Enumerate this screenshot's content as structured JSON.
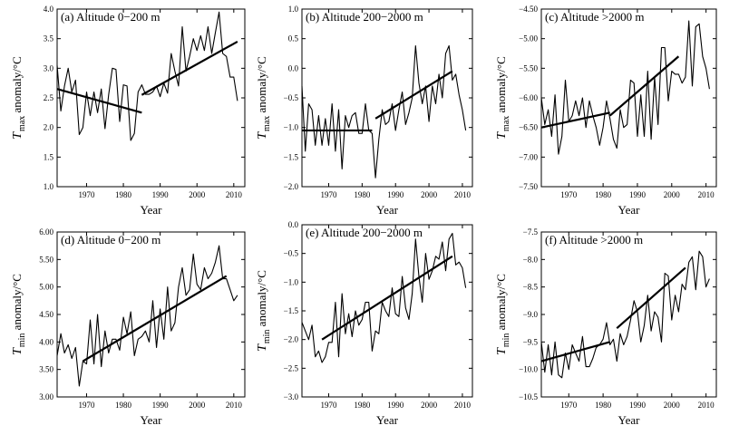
{
  "figure": {
    "xlabel": "Year",
    "ylabel_var_max": "T",
    "ylabel_sub_max": "max",
    "ylabel_var_min": "T",
    "ylabel_sub_min": "min",
    "ylabel_rest": " anomaly/°C"
  },
  "chart_data": [
    {
      "type": "line",
      "panel": "(a)",
      "title": "Altitude 0−200 m",
      "xlabel": "Year",
      "ylabel": "T max anomaly/°C",
      "variable": "max",
      "xlim": [
        1962,
        2013
      ],
      "ylim": [
        1.0,
        4.0
      ],
      "xticks": [
        1970,
        1980,
        1990,
        2000,
        2010
      ],
      "yticks": [
        1.0,
        1.5,
        2.0,
        2.5,
        3.0,
        3.5,
        4.0
      ],
      "ytick_labels": [
        "1.0",
        "1.5",
        "2.0",
        "2.5",
        "3.0",
        "3.5",
        "4.0"
      ],
      "years_start": 1962,
      "values": [
        3.05,
        2.28,
        2.7,
        3.0,
        2.6,
        2.8,
        1.88,
        2.0,
        2.6,
        2.2,
        2.6,
        2.25,
        2.65,
        1.98,
        2.55,
        3.0,
        2.98,
        2.1,
        2.72,
        2.7,
        1.78,
        1.9,
        2.6,
        2.72,
        2.56,
        2.56,
        2.6,
        2.7,
        2.52,
        2.75,
        2.58,
        3.25,
        2.95,
        2.7,
        3.7,
        2.95,
        3.2,
        3.5,
        3.3,
        3.55,
        3.3,
        3.7,
        3.25,
        3.6,
        3.95,
        3.25,
        3.2,
        2.85,
        2.85,
        2.45
      ],
      "trend_lines": [
        {
          "x": [
            1962,
            1985
          ],
          "y": [
            2.65,
            2.25
          ]
        },
        {
          "x": [
            1985,
            2011
          ],
          "y": [
            2.55,
            3.45
          ]
        }
      ]
    },
    {
      "type": "line",
      "panel": "(b)",
      "title": "Altitude 200−2000 m",
      "xlabel": "Year",
      "ylabel": "T max anomaly/°C",
      "variable": "max",
      "xlim": [
        1962,
        2013
      ],
      "ylim": [
        -2.0,
        1.0
      ],
      "xticks": [
        1970,
        1980,
        1990,
        2000,
        2010
      ],
      "yticks": [
        -2.0,
        -1.5,
        -1.0,
        -0.5,
        0.0,
        0.5,
        1.0
      ],
      "ytick_labels": [
        "−2.0",
        "−1.5",
        "−1.0",
        "−0.5",
        "0.0",
        "0.5",
        "1.0"
      ],
      "years_start": 1962,
      "values": [
        -0.3,
        -1.4,
        -0.6,
        -0.7,
        -1.3,
        -0.8,
        -1.3,
        -0.85,
        -1.3,
        -0.6,
        -1.4,
        -0.7,
        -1.7,
        -0.8,
        -1.0,
        -0.8,
        -0.75,
        -1.1,
        -1.1,
        -0.6,
        -1.05,
        -1.1,
        -1.85,
        -1.2,
        -0.7,
        -0.95,
        -0.9,
        -0.6,
        -1.05,
        -0.7,
        -0.4,
        -0.95,
        -0.75,
        -0.5,
        0.38,
        -0.25,
        -0.6,
        -0.3,
        -0.9,
        -0.3,
        -0.6,
        -0.1,
        -0.5,
        0.25,
        0.38,
        -0.2,
        -0.1,
        -0.45,
        -0.7,
        -1.05
      ],
      "trend_lines": [
        {
          "x": [
            1962,
            1983
          ],
          "y": [
            -1.05,
            -1.05
          ]
        },
        {
          "x": [
            1984,
            2007
          ],
          "y": [
            -0.85,
            -0.05
          ]
        }
      ]
    },
    {
      "type": "line",
      "panel": "(c)",
      "title": "Altitude >2000 m",
      "xlabel": "Year",
      "ylabel": "T max anomaly/°C",
      "variable": "max",
      "xlim": [
        1962,
        2013
      ],
      "ylim": [
        -7.5,
        -4.5
      ],
      "xticks": [
        1970,
        1980,
        1990,
        2000,
        2010
      ],
      "yticks": [
        -7.5,
        -7.0,
        -6.5,
        -6.0,
        -5.5,
        -5.0,
        -4.5
      ],
      "ytick_labels": [
        "−7.50",
        "−7.00",
        "−6.50",
        "−6.00",
        "−5.50",
        "−5.00",
        "−4.50"
      ],
      "years_start": 1962,
      "values": [
        -6.0,
        -6.45,
        -6.2,
        -6.65,
        -5.95,
        -6.95,
        -6.65,
        -5.7,
        -6.4,
        -6.3,
        -6.05,
        -6.3,
        -6.0,
        -6.5,
        -6.05,
        -6.3,
        -6.5,
        -6.8,
        -6.5,
        -6.05,
        -6.35,
        -6.7,
        -6.85,
        -6.2,
        -6.5,
        -6.45,
        -5.7,
        -5.75,
        -6.65,
        -5.95,
        -6.65,
        -5.55,
        -6.7,
        -5.65,
        -6.45,
        -5.15,
        -5.15,
        -6.05,
        -5.55,
        -5.6,
        -5.6,
        -5.75,
        -5.65,
        -4.7,
        -5.8,
        -4.8,
        -4.75,
        -5.3,
        -5.5,
        -5.85
      ],
      "trend_lines": [
        {
          "x": [
            1962,
            1982
          ],
          "y": [
            -6.5,
            -6.25
          ]
        },
        {
          "x": [
            1982,
            2002
          ],
          "y": [
            -6.3,
            -5.3
          ]
        }
      ]
    },
    {
      "type": "line",
      "panel": "(d)",
      "title": "Altitude 0−200 m",
      "xlabel": "Year",
      "ylabel": "T min anomaly/°C",
      "variable": "min",
      "xlim": [
        1962,
        2013
      ],
      "ylim": [
        3.0,
        6.0
      ],
      "xticks": [
        1970,
        1980,
        1990,
        2000,
        2010
      ],
      "yticks": [
        3.0,
        3.5,
        4.0,
        4.5,
        5.0,
        5.5,
        6.0
      ],
      "ytick_labels": [
        "3.00",
        "3.50",
        "4.00",
        "4.50",
        "5.00",
        "5.50",
        "6.00"
      ],
      "years_start": 1962,
      "values": [
        3.75,
        4.15,
        3.8,
        3.95,
        3.7,
        3.9,
        3.2,
        3.65,
        3.6,
        4.4,
        3.6,
        4.5,
        3.55,
        4.2,
        3.8,
        4.05,
        4.05,
        3.85,
        4.45,
        4.15,
        4.55,
        3.75,
        4.05,
        4.1,
        4.2,
        4.0,
        4.75,
        3.9,
        4.6,
        4.05,
        5.0,
        4.2,
        4.35,
        5.0,
        5.35,
        4.85,
        4.95,
        5.6,
        5.05,
        4.95,
        5.35,
        5.15,
        5.25,
        5.45,
        5.75,
        5.15,
        5.15,
        4.95,
        4.75,
        4.85
      ],
      "trend_lines": [
        {
          "x": [
            1969,
            2008
          ],
          "y": [
            3.65,
            5.2
          ]
        }
      ]
    },
    {
      "type": "line",
      "panel": "(e)",
      "title": "Altitude 200−2000 m",
      "xlabel": "Year",
      "ylabel": "T min anomaly/°C",
      "variable": "min",
      "xlim": [
        1962,
        2013
      ],
      "ylim": [
        -3.0,
        0.0
      ],
      "xticks": [
        1970,
        1980,
        1990,
        2000,
        2010
      ],
      "yticks": [
        -3.0,
        -2.5,
        -2.0,
        -1.5,
        -1.0,
        -0.5,
        0.0
      ],
      "ytick_labels": [
        "−3.0",
        "−2.5",
        "−2.0",
        "−1.5",
        "−1.0",
        "−0.5",
        "0.0"
      ],
      "years_start": 1962,
      "values": [
        -1.7,
        -1.85,
        -2.0,
        -1.75,
        -2.3,
        -2.2,
        -2.4,
        -2.3,
        -2.05,
        -2.05,
        -1.35,
        -2.3,
        -1.2,
        -1.9,
        -1.55,
        -1.95,
        -1.5,
        -1.75,
        -1.65,
        -1.35,
        -1.35,
        -2.2,
        -1.85,
        -1.9,
        -1.35,
        -1.5,
        -1.6,
        -1.1,
        -1.55,
        -1.6,
        -0.9,
        -1.45,
        -1.65,
        -1.2,
        -0.25,
        -0.9,
        -1.35,
        -0.5,
        -0.95,
        -0.8,
        -0.55,
        -0.6,
        -0.3,
        -0.8,
        -0.25,
        -0.15,
        -0.7,
        -0.65,
        -0.75,
        -1.1
      ],
      "trend_lines": [
        {
          "x": [
            1968,
            2007
          ],
          "y": [
            -2.0,
            -0.55
          ]
        }
      ]
    },
    {
      "type": "line",
      "panel": "(f)",
      "title": "Altitude >2000 m",
      "xlabel": "Year",
      "ylabel": "T min anomaly/°C",
      "variable": "min",
      "xlim": [
        1962,
        2013
      ],
      "ylim": [
        -10.5,
        -7.5
      ],
      "xticks": [
        1970,
        1980,
        1990,
        2000,
        2010
      ],
      "yticks": [
        -10.5,
        -10.0,
        -9.5,
        -9.0,
        -8.5,
        -8.0,
        -7.5
      ],
      "ytick_labels": [
        "−10.5",
        "−10.0",
        "−9.5",
        "−9.0",
        "−8.5",
        "−8.0",
        "−7.5"
      ],
      "years_start": 1962,
      "values": [
        -9.5,
        -10.05,
        -9.55,
        -10.1,
        -9.5,
        -10.1,
        -10.15,
        -9.7,
        -10.0,
        -9.55,
        -9.7,
        -9.85,
        -9.4,
        -9.95,
        -9.95,
        -9.8,
        -9.6,
        -9.55,
        -9.45,
        -9.15,
        -9.55,
        -9.45,
        -9.85,
        -9.35,
        -9.55,
        -9.4,
        -9.1,
        -8.75,
        -8.95,
        -9.5,
        -9.2,
        -8.65,
        -9.3,
        -8.95,
        -9.05,
        -9.5,
        -8.25,
        -8.3,
        -9.1,
        -8.65,
        -8.95,
        -8.45,
        -8.55,
        -8.05,
        -7.95,
        -8.55,
        -7.85,
        -7.95,
        -8.5,
        -8.35
      ],
      "trend_lines": [
        {
          "x": [
            1962,
            1982
          ],
          "y": [
            -9.85,
            -9.5
          ]
        },
        {
          "x": [
            1984,
            2004
          ],
          "y": [
            -9.25,
            -8.15
          ]
        }
      ]
    }
  ]
}
